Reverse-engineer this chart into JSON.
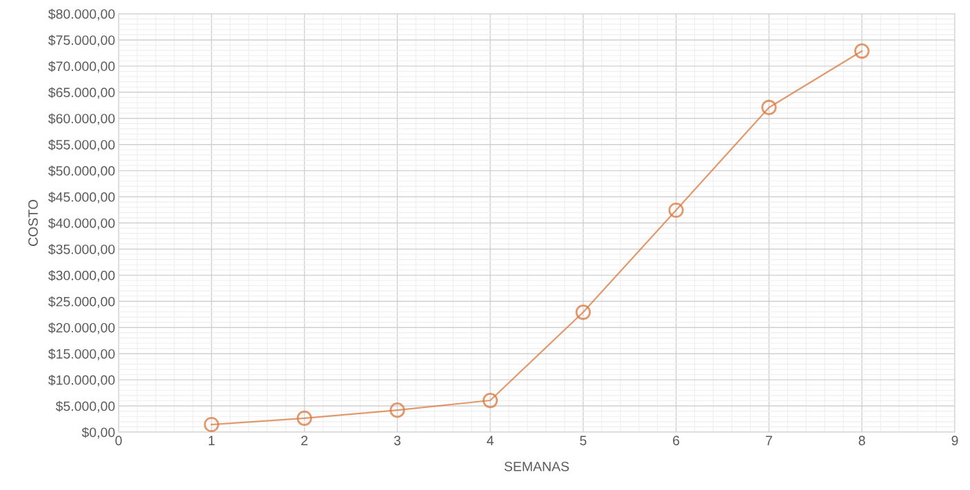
{
  "chart_data": {
    "type": "line",
    "xlabel": "SEMANAS",
    "ylabel": "COSTO",
    "x": [
      1,
      2,
      3,
      4,
      5,
      6,
      7,
      8
    ],
    "series": [
      {
        "color": "#d9773d",
        "values": [
          1450,
          2640,
          4200,
          6060,
          22930,
          42440,
          62080,
          72880
        ]
      }
    ],
    "xlim": [
      0,
      9
    ],
    "xticks": [
      0,
      1,
      2,
      3,
      4,
      5,
      6,
      7,
      8,
      9
    ],
    "ylim": [
      0,
      80000
    ],
    "yticks": [
      {
        "value": 0,
        "label": "$0,00"
      },
      {
        "value": 5000,
        "label": "$5.000,00"
      },
      {
        "value": 10000,
        "label": "$10.000,00"
      },
      {
        "value": 15000,
        "label": "$15.000,00"
      },
      {
        "value": 20000,
        "label": "$20.000,00"
      },
      {
        "value": 25000,
        "label": "$25.000,00"
      },
      {
        "value": 30000,
        "label": "$30.000,00"
      },
      {
        "value": 35000,
        "label": "$35.000,00"
      },
      {
        "value": 40000,
        "label": "$40.000,00"
      },
      {
        "value": 45000,
        "label": "$45.000,00"
      },
      {
        "value": 50000,
        "label": "$50.000,00"
      },
      {
        "value": 55000,
        "label": "$55.000,00"
      },
      {
        "value": 60000,
        "label": "$60.000,00"
      },
      {
        "value": 65000,
        "label": "$65.000,00"
      },
      {
        "value": 70000,
        "label": "$70.000,00"
      },
      {
        "value": 75000,
        "label": "$75.000,00"
      },
      {
        "value": 80000,
        "label": "$80.000,00"
      }
    ],
    "grid": true,
    "marker": "circle",
    "line_style": "solid"
  }
}
